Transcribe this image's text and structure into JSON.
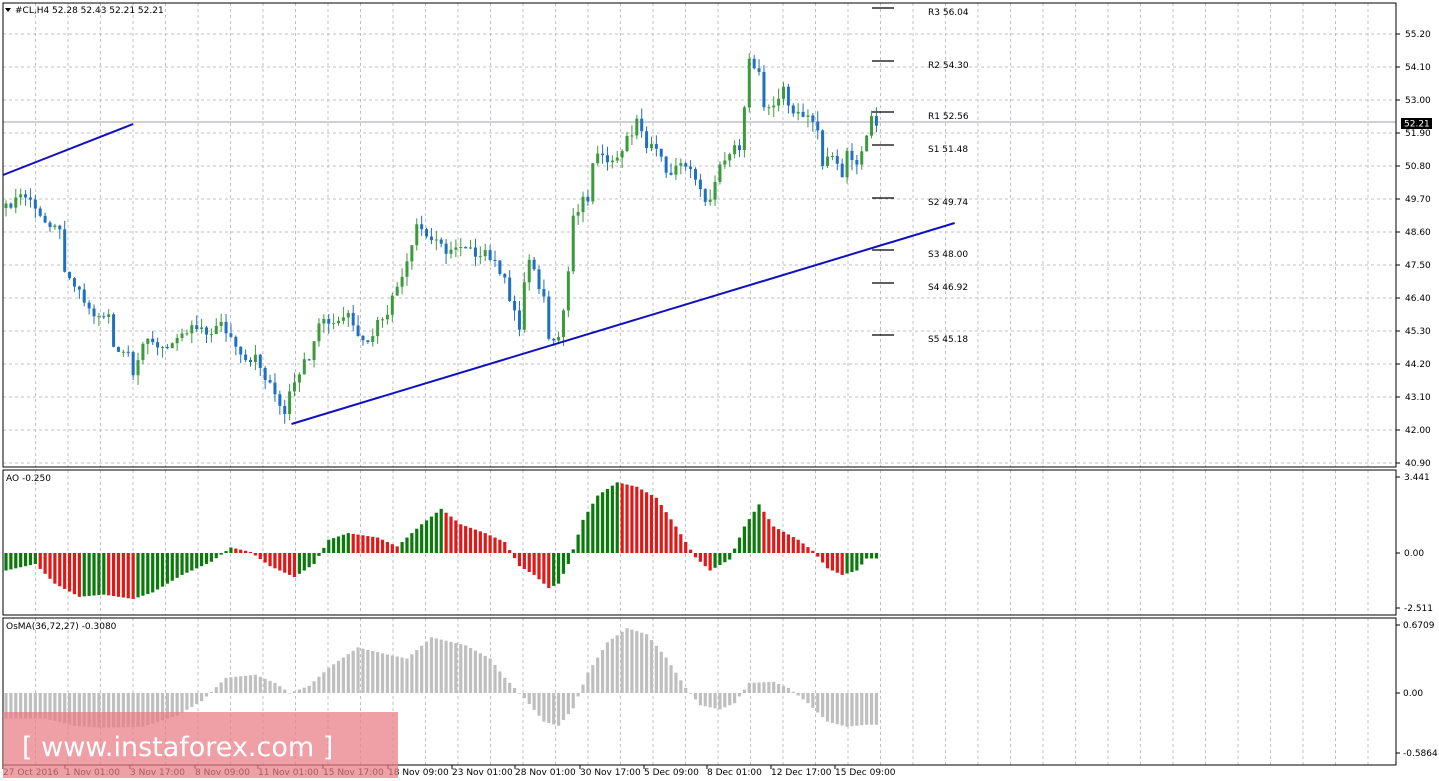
{
  "window": {
    "symbol_bar": "#CL,H4  52.28 52.43 52.21 52.21",
    "current_price": "52.21"
  },
  "colors": {
    "background": "#ffffff",
    "grid": "#c0c0c0",
    "candle_up": "#3c9a3c",
    "candle_down": "#2070c0",
    "trendline": "#1010c0",
    "ao_up": "#0a7a0a",
    "ao_down": "#e01818",
    "osma": "#bfbfbf",
    "price_tag_bg": "#000000",
    "watermark_bg": "#e87c84"
  },
  "watermark": {
    "text": "[ www.instaforex.com ]"
  },
  "chart_data": [
    {
      "type": "candlestick",
      "panel": "main",
      "ylim": [
        40.9,
        55.8
      ],
      "y_ticks": [
        "55.20",
        "54.10",
        "53.00",
        "51.90",
        "50.80",
        "49.70",
        "48.60",
        "47.50",
        "46.40",
        "45.30",
        "44.20",
        "43.10",
        "42.00",
        "40.90"
      ],
      "x_ticks": [
        "27 Oct 2016",
        "1 Nov 01:00",
        "3 Nov 17:00",
        "8 Nov 09:00",
        "11 Nov 01:00",
        "15 Nov 17:00",
        "18 Nov 09:00",
        "23 Nov 01:00",
        "28 Nov 01:00",
        "30 Nov 17:00",
        "5 Dec 09:00",
        "8 Dec 01:00",
        "12 Dec 17:00",
        "15 Dec 09:00"
      ],
      "close_path": [
        [
          0,
          49.4
        ],
        [
          3,
          49.9
        ],
        [
          6,
          49.5
        ],
        [
          9,
          48.6
        ],
        [
          11,
          48.8
        ],
        [
          12,
          47.1
        ],
        [
          14,
          46.8
        ],
        [
          17,
          46.0
        ],
        [
          19,
          45.7
        ],
        [
          21,
          45.8
        ],
        [
          22,
          44.8
        ],
        [
          25,
          44.6
        ],
        [
          26,
          44.0
        ],
        [
          28,
          44.9
        ],
        [
          32,
          44.8
        ],
        [
          35,
          44.9
        ],
        [
          38,
          45.4
        ],
        [
          41,
          45.2
        ],
        [
          44,
          45.5
        ],
        [
          47,
          44.9
        ],
        [
          49,
          44.4
        ],
        [
          51,
          44.4
        ],
        [
          53,
          43.7
        ],
        [
          55,
          43.2
        ],
        [
          57,
          42.6
        ],
        [
          58,
          43.4
        ],
        [
          60,
          44.0
        ],
        [
          62,
          44.5
        ],
        [
          64,
          45.7
        ],
        [
          67,
          45.6
        ],
        [
          70,
          45.9
        ],
        [
          72,
          45.3
        ],
        [
          74,
          44.9
        ],
        [
          76,
          45.6
        ],
        [
          78,
          46.0
        ],
        [
          80,
          46.8
        ],
        [
          82,
          47.7
        ],
        [
          84,
          48.9
        ],
        [
          86,
          48.5
        ],
        [
          88,
          48.2
        ],
        [
          90,
          48.0
        ],
        [
          93,
          48.0
        ],
        [
          96,
          47.9
        ],
        [
          98,
          48.0
        ],
        [
          100,
          47.5
        ],
        [
          102,
          47.2
        ],
        [
          103,
          46.3
        ],
        [
          105,
          45.4
        ],
        [
          106,
          46.9
        ],
        [
          107,
          47.6
        ],
        [
          109,
          46.8
        ],
        [
          110,
          46.4
        ],
        [
          111,
          45.2
        ],
        [
          113,
          45.1
        ],
        [
          114,
          46.0
        ],
        [
          115,
          47.3
        ],
        [
          116,
          49.0
        ],
        [
          118,
          49.6
        ],
        [
          119,
          49.7
        ],
        [
          120,
          50.8
        ],
        [
          122,
          51.3
        ],
        [
          124,
          50.9
        ],
        [
          126,
          51.4
        ],
        [
          128,
          51.9
        ],
        [
          129,
          52.4
        ],
        [
          131,
          51.3
        ],
        [
          132,
          51.7
        ],
        [
          134,
          51.0
        ],
        [
          136,
          50.4
        ],
        [
          138,
          51.0
        ],
        [
          140,
          50.6
        ],
        [
          142,
          49.9
        ],
        [
          144,
          49.6
        ],
        [
          146,
          50.7
        ],
        [
          148,
          51.2
        ],
        [
          150,
          51.5
        ],
        [
          152,
          54.3
        ],
        [
          154,
          53.8
        ],
        [
          155,
          52.6
        ],
        [
          157,
          52.9
        ],
        [
          159,
          53.3
        ],
        [
          160,
          52.8
        ],
        [
          162,
          52.6
        ],
        [
          164,
          52.5
        ],
        [
          166,
          51.9
        ],
        [
          167,
          50.8
        ],
        [
          169,
          51.3
        ],
        [
          171,
          50.3
        ],
        [
          172,
          51.2
        ],
        [
          174,
          50.8
        ],
        [
          175,
          51.4
        ],
        [
          177,
          52.3
        ],
        [
          178,
          52.2
        ]
      ]
    },
    {
      "type": "horizontal_levels",
      "panel": "main",
      "levels": [
        {
          "name": "R3",
          "label": "R3 56.04",
          "value": 56.04
        },
        {
          "name": "R2",
          "label": "R2 54.30",
          "value": 54.3
        },
        {
          "name": "R1",
          "label": "R1 52.56",
          "value": 52.56
        },
        {
          "name": "S1",
          "label": "S1 51.48",
          "value": 51.48
        },
        {
          "name": "S2",
          "label": "S2 49.74",
          "value": 49.74
        },
        {
          "name": "S3",
          "label": "S3 48.00",
          "value": 48.0
        },
        {
          "name": "S4",
          "label": "S4 46.92",
          "value": 46.92
        },
        {
          "name": "S5",
          "label": "S5 45.18",
          "value": 45.18
        }
      ]
    },
    {
      "type": "trendlines",
      "panel": "main",
      "lines": [
        {
          "name": "upper-trendline",
          "from": [
            0,
            50.5
          ],
          "to": [
            26,
            52.2
          ]
        },
        {
          "name": "lower-trendline",
          "from": [
            59,
            42.2
          ],
          "to": [
            194,
            48.9
          ]
        }
      ]
    },
    {
      "type": "bar",
      "panel": "ao",
      "title": "AO -0.250",
      "ylim": [
        -2.511,
        3.441
      ],
      "y_ticks": [
        "3.441",
        "0.00",
        "-2.511"
      ],
      "profile": [
        [
          0,
          -0.8
        ],
        [
          6,
          -0.5
        ],
        [
          10,
          -1.4
        ],
        [
          15,
          -2.0
        ],
        [
          20,
          -1.9
        ],
        [
          26,
          -2.1
        ],
        [
          30,
          -1.8
        ],
        [
          36,
          -1.0
        ],
        [
          42,
          -0.4
        ],
        [
          46,
          0.25
        ],
        [
          50,
          0.05
        ],
        [
          54,
          -0.6
        ],
        [
          59,
          -1.1
        ],
        [
          63,
          -0.5
        ],
        [
          66,
          0.6
        ],
        [
          70,
          0.9
        ],
        [
          76,
          0.7
        ],
        [
          80,
          0.3
        ],
        [
          85,
          1.3
        ],
        [
          89,
          2.0
        ],
        [
          93,
          1.3
        ],
        [
          98,
          0.9
        ],
        [
          102,
          0.5
        ],
        [
          105,
          -0.6
        ],
        [
          108,
          -1.0
        ],
        [
          111,
          -1.6
        ],
        [
          113,
          -1.4
        ],
        [
          115,
          -0.5
        ],
        [
          118,
          1.5
        ],
        [
          121,
          2.6
        ],
        [
          125,
          3.2
        ],
        [
          129,
          3.0
        ],
        [
          133,
          2.5
        ],
        [
          137,
          1.2
        ],
        [
          141,
          -0.2
        ],
        [
          144,
          -0.8
        ],
        [
          148,
          -0.3
        ],
        [
          151,
          1.2
        ],
        [
          154,
          2.2
        ],
        [
          157,
          1.2
        ],
        [
          162,
          0.6
        ],
        [
          165,
          0.1
        ],
        [
          168,
          -0.7
        ],
        [
          171,
          -1.0
        ],
        [
          174,
          -0.8
        ],
        [
          176,
          -0.25
        ]
      ]
    },
    {
      "type": "bar",
      "panel": "osma",
      "title": "OsMA(36,72,27) -0.3080",
      "ylim": [
        -0.5864,
        0.6709
      ],
      "y_ticks": [
        "0.6709",
        "0.00",
        "-0.5864"
      ],
      "profile": [
        [
          0,
          -0.25
        ],
        [
          8,
          -0.25
        ],
        [
          14,
          -0.32
        ],
        [
          20,
          -0.34
        ],
        [
          28,
          -0.33
        ],
        [
          35,
          -0.22
        ],
        [
          40,
          -0.08
        ],
        [
          45,
          0.15
        ],
        [
          51,
          0.18
        ],
        [
          55,
          0.1
        ],
        [
          58,
          0.0
        ],
        [
          62,
          0.07
        ],
        [
          66,
          0.25
        ],
        [
          72,
          0.45
        ],
        [
          78,
          0.38
        ],
        [
          82,
          0.34
        ],
        [
          87,
          0.55
        ],
        [
          94,
          0.47
        ],
        [
          99,
          0.34
        ],
        [
          102,
          0.15
        ],
        [
          106,
          -0.05
        ],
        [
          110,
          -0.28
        ],
        [
          113,
          -0.32
        ],
        [
          116,
          -0.15
        ],
        [
          119,
          0.2
        ],
        [
          123,
          0.5
        ],
        [
          127,
          0.64
        ],
        [
          131,
          0.58
        ],
        [
          135,
          0.35
        ],
        [
          139,
          0.05
        ],
        [
          142,
          -0.12
        ],
        [
          146,
          -0.16
        ],
        [
          149,
          -0.1
        ],
        [
          152,
          0.1
        ],
        [
          157,
          0.11
        ],
        [
          160,
          0.05
        ],
        [
          164,
          -0.1
        ],
        [
          168,
          -0.28
        ],
        [
          172,
          -0.33
        ],
        [
          176,
          -0.31
        ]
      ]
    }
  ]
}
